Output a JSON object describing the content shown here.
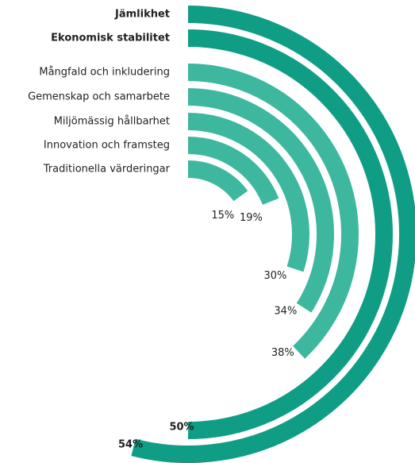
{
  "chart_data": {
    "type": "radial_bar",
    "categories": [
      "Jämlikhet",
      "Ekonomisk stabilitet",
      "Mångfald och inkludering",
      "Gemenskap och samarbete",
      "Miljömässig hållbarhet",
      "Innovation och framsteg",
      "Traditionella värderingar"
    ],
    "values": [
      54,
      50,
      38,
      34,
      30,
      19,
      15
    ],
    "value_labels": [
      "54%",
      "50%",
      "38%",
      "34%",
      "30%",
      "19%",
      "15%"
    ],
    "colors": [
      "#0f9e85",
      "#0f9e85",
      "#3db89e",
      "#3db89e",
      "#3db89e",
      "#3db89e",
      "#3db89e"
    ],
    "ylim": [
      0,
      100
    ]
  }
}
